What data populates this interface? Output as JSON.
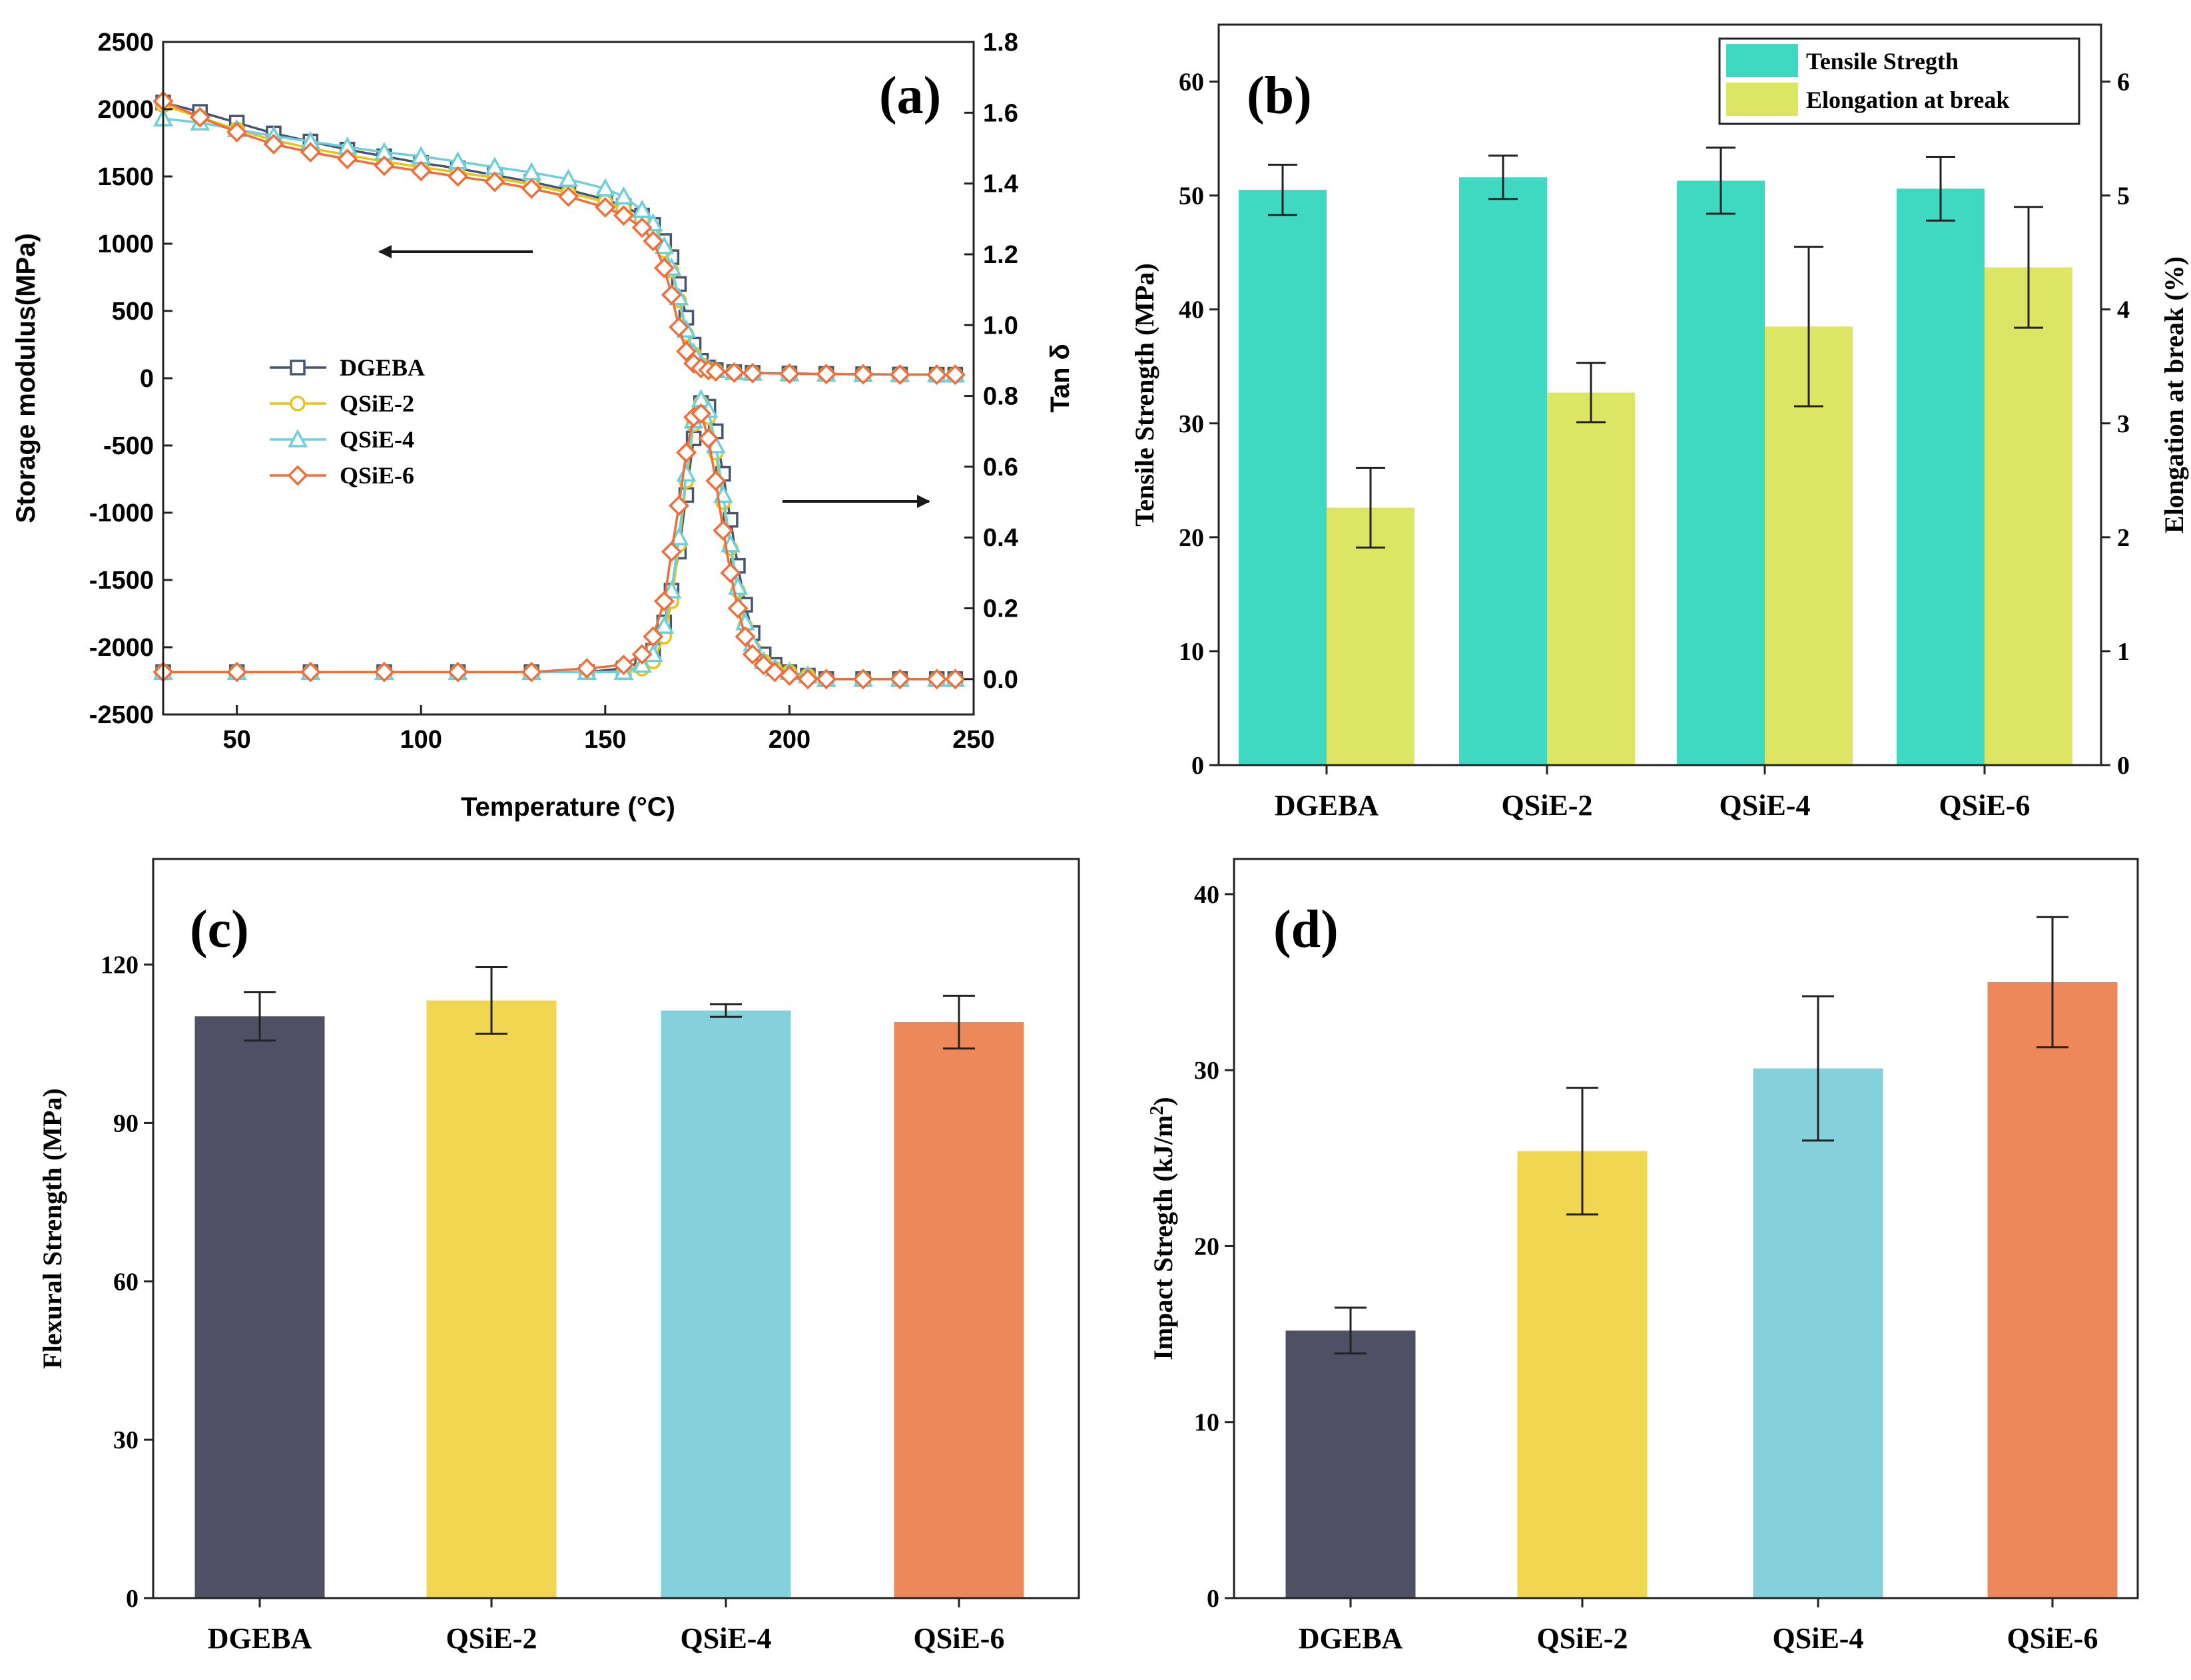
{
  "colors": {
    "dgeba": "#4f5064",
    "qsie2": "#f0d651",
    "qsie4": "#85d1db",
    "qsie6": "#ec885a",
    "tensile": "#3fd8c1",
    "elong": "#dde664",
    "line_dgeba": "#475670",
    "line_qsie2": "#e8c318",
    "line_qsie4": "#6fcfd8",
    "line_qsie6": "#ef6f3c",
    "arrow": "#1a1a1a"
  },
  "chart_data": [
    {
      "id": "a",
      "type": "line",
      "panel_label": "(a)",
      "xlabel": "Temperature (°C)",
      "ylabel_left": "Storage modulus(MPa)",
      "ylabel_right": "Tan δ",
      "xlim": [
        30,
        250
      ],
      "ylim_left": [
        -2500,
        2500
      ],
      "ylim_right": [
        -0.1,
        1.8
      ],
      "x_ticks": [
        50,
        100,
        150,
        200,
        250
      ],
      "y_left_ticks": [
        -2500,
        -2000,
        -1500,
        -1000,
        -500,
        0,
        500,
        1000,
        1500,
        2000,
        2500
      ],
      "y_right_ticks": [
        0.0,
        0.2,
        0.4,
        0.6,
        0.8,
        1.0,
        1.2,
        1.4,
        1.6,
        1.8
      ],
      "legend": [
        "DGEBA",
        "QSiE-2",
        "QSiE-4",
        "QSiE-6"
      ],
      "markers": [
        "square",
        "circle",
        "triangle",
        "diamond"
      ],
      "series_storage_modulus": [
        {
          "name": "DGEBA",
          "x": [
            30,
            40,
            50,
            60,
            70,
            80,
            90,
            100,
            110,
            120,
            130,
            140,
            150,
            155,
            160,
            163,
            166,
            168,
            170,
            172,
            174,
            176,
            178,
            180,
            185,
            190,
            200,
            210,
            220,
            230,
            240,
            245
          ],
          "y": [
            2050,
            1980,
            1900,
            1820,
            1760,
            1700,
            1650,
            1600,
            1560,
            1510,
            1460,
            1400,
            1330,
            1280,
            1210,
            1140,
            1020,
            900,
            700,
            450,
            250,
            130,
            80,
            60,
            45,
            40,
            35,
            32,
            30,
            28,
            27,
            27
          ]
        },
        {
          "name": "QSiE-2",
          "x": [
            30,
            40,
            50,
            60,
            70,
            80,
            90,
            100,
            110,
            120,
            130,
            140,
            150,
            155,
            160,
            163,
            166,
            168,
            170,
            172,
            174,
            176,
            178,
            180,
            185,
            190,
            200,
            210,
            220,
            230,
            240,
            245
          ],
          "y": [
            2030,
            1940,
            1850,
            1770,
            1710,
            1660,
            1610,
            1570,
            1530,
            1490,
            1440,
            1380,
            1310,
            1260,
            1180,
            1100,
            950,
            800,
            580,
            330,
            180,
            100,
            70,
            55,
            45,
            40,
            35,
            32,
            30,
            28,
            27,
            27
          ]
        },
        {
          "name": "QSiE-4",
          "x": [
            30,
            40,
            50,
            60,
            70,
            80,
            90,
            100,
            110,
            120,
            130,
            140,
            150,
            155,
            160,
            163,
            166,
            168,
            170,
            172,
            174,
            176,
            178,
            180,
            185,
            190,
            200,
            210,
            220,
            230,
            240,
            245
          ],
          "y": [
            1930,
            1900,
            1850,
            1800,
            1760,
            1720,
            1680,
            1650,
            1610,
            1570,
            1530,
            1480,
            1410,
            1350,
            1250,
            1150,
            980,
            820,
            600,
            360,
            190,
            110,
            75,
            58,
            45,
            40,
            35,
            32,
            30,
            28,
            27,
            27
          ]
        },
        {
          "name": "QSiE-6",
          "x": [
            30,
            40,
            50,
            60,
            70,
            80,
            90,
            100,
            110,
            120,
            130,
            140,
            150,
            155,
            160,
            163,
            166,
            168,
            170,
            172,
            174,
            176,
            178,
            180,
            185,
            190,
            200,
            210,
            220,
            230,
            240,
            245
          ],
          "y": [
            2060,
            1940,
            1830,
            1740,
            1680,
            1630,
            1580,
            1540,
            1500,
            1460,
            1410,
            1350,
            1270,
            1210,
            1120,
            1020,
            820,
            620,
            380,
            200,
            110,
            75,
            60,
            50,
            42,
            38,
            34,
            31,
            29,
            27,
            26,
            26
          ]
        }
      ],
      "series_tan_delta": [
        {
          "name": "DGEBA",
          "x": [
            30,
            50,
            70,
            90,
            110,
            130,
            145,
            155,
            160,
            163,
            166,
            168,
            170,
            172,
            174,
            176,
            178,
            180,
            182,
            184,
            186,
            188,
            190,
            193,
            196,
            200,
            205,
            210,
            220,
            230,
            240,
            245
          ],
          "y": [
            0.02,
            0.02,
            0.02,
            0.02,
            0.02,
            0.02,
            0.02,
            0.03,
            0.05,
            0.08,
            0.16,
            0.25,
            0.36,
            0.52,
            0.68,
            0.78,
            0.77,
            0.7,
            0.58,
            0.45,
            0.32,
            0.21,
            0.13,
            0.07,
            0.04,
            0.02,
            0.01,
            0.0,
            0.0,
            0.0,
            0.0,
            0.0
          ]
        },
        {
          "name": "QSiE-2",
          "x": [
            30,
            50,
            70,
            90,
            110,
            130,
            145,
            155,
            160,
            163,
            166,
            168,
            170,
            172,
            174,
            176,
            178,
            180,
            182,
            184,
            186,
            188,
            190,
            193,
            196,
            200,
            205,
            210,
            220,
            230,
            240,
            245
          ],
          "y": [
            0.02,
            0.02,
            0.02,
            0.02,
            0.02,
            0.02,
            0.02,
            0.02,
            0.03,
            0.05,
            0.12,
            0.22,
            0.38,
            0.56,
            0.72,
            0.78,
            0.74,
            0.64,
            0.5,
            0.37,
            0.25,
            0.15,
            0.09,
            0.05,
            0.03,
            0.02,
            0.01,
            0.0,
            0.0,
            0.0,
            0.0,
            0.0
          ]
        },
        {
          "name": "QSiE-4",
          "x": [
            30,
            50,
            70,
            90,
            110,
            130,
            145,
            155,
            160,
            163,
            166,
            168,
            170,
            172,
            174,
            176,
            178,
            180,
            182,
            184,
            186,
            188,
            190,
            193,
            196,
            200,
            205,
            210,
            220,
            230,
            240,
            245
          ],
          "y": [
            0.02,
            0.02,
            0.02,
            0.02,
            0.02,
            0.02,
            0.02,
            0.02,
            0.04,
            0.07,
            0.15,
            0.25,
            0.4,
            0.58,
            0.73,
            0.79,
            0.76,
            0.66,
            0.52,
            0.38,
            0.26,
            0.16,
            0.1,
            0.05,
            0.03,
            0.02,
            0.01,
            0.0,
            0.0,
            0.0,
            0.0,
            0.0
          ]
        },
        {
          "name": "QSiE-6",
          "x": [
            30,
            50,
            70,
            90,
            110,
            130,
            145,
            155,
            160,
            163,
            166,
            168,
            170,
            172,
            174,
            176,
            178,
            180,
            182,
            184,
            186,
            188,
            190,
            193,
            196,
            200,
            205,
            210,
            220,
            230,
            240,
            245
          ],
          "y": [
            0.02,
            0.02,
            0.02,
            0.02,
            0.02,
            0.02,
            0.03,
            0.04,
            0.07,
            0.12,
            0.22,
            0.36,
            0.49,
            0.64,
            0.74,
            0.75,
            0.68,
            0.56,
            0.42,
            0.3,
            0.2,
            0.12,
            0.07,
            0.04,
            0.02,
            0.01,
            0.0,
            0.0,
            0.0,
            0.0,
            0.0,
            0.0
          ]
        }
      ],
      "annotations": [
        {
          "type": "arrow",
          "direction": "left",
          "refers_to": "storage modulus"
        },
        {
          "type": "arrow",
          "direction": "right",
          "refers_to": "tan delta"
        }
      ]
    },
    {
      "id": "b",
      "type": "bar",
      "panel_label": "(b)",
      "categories": [
        "DGEBA",
        "QSiE-2",
        "QSiE-4",
        "QSiE-6"
      ],
      "ylabel_left": "Tensile Strength (MPa)",
      "ylabel_right": "Elongation at break (%)",
      "ylim_left": [
        0,
        65
      ],
      "ylim_right": [
        0,
        6.5
      ],
      "y_left_ticks": [
        0,
        10,
        20,
        30,
        40,
        50,
        60
      ],
      "y_right_ticks": [
        0,
        1,
        2,
        3,
        4,
        5,
        6
      ],
      "series": [
        {
          "name": "Tensile Stregth",
          "axis": "left",
          "values": [
            50.5,
            51.6,
            51.3,
            50.6
          ],
          "errors": [
            2.2,
            1.9,
            2.9,
            2.8
          ]
        },
        {
          "name": "Elongation at break",
          "axis": "right",
          "values": [
            2.26,
            3.27,
            3.85,
            4.37
          ],
          "errors": [
            0.35,
            0.26,
            0.7,
            0.53
          ]
        }
      ],
      "legend_position": "top-right"
    },
    {
      "id": "c",
      "type": "bar",
      "panel_label": "(c)",
      "categories": [
        "DGEBA",
        "QSiE-2",
        "QSiE-4",
        "QSiE-6"
      ],
      "ylabel": "Flexural Strength (MPa)",
      "ylim": [
        0,
        140
      ],
      "y_ticks": [
        0,
        30,
        60,
        90,
        120
      ],
      "values": [
        110.2,
        113.2,
        111.3,
        109.1
      ],
      "errors": [
        4.6,
        6.3,
        1.2,
        5.0
      ]
    },
    {
      "id": "d",
      "type": "bar",
      "panel_label": "(d)",
      "categories": [
        "DGEBA",
        "QSiE-2",
        "QSiE-4",
        "QSiE-6"
      ],
      "ylabel": "Impact Stregth (kJ/m",
      "ylabel_sup": "2",
      "ylabel_end": ")",
      "ylim": [
        0,
        42
      ],
      "y_ticks": [
        0,
        10,
        20,
        30,
        40
      ],
      "values": [
        15.2,
        25.4,
        30.1,
        35.0
      ],
      "errors": [
        1.3,
        3.6,
        4.1,
        3.7
      ]
    }
  ]
}
